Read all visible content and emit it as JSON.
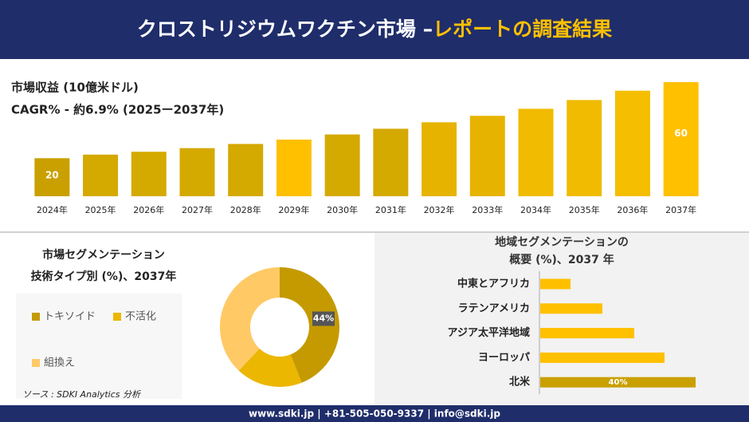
{
  "header": {
    "title": "クロストリジウムワクチン市場 –",
    "highlight": "レポートの調査結果"
  },
  "chart_data": [
    {
      "type": "bar",
      "title": "市場収益 (10億米ドル)",
      "subtitle": "CAGR% - 約6.9% (2025ー2037年)",
      "categories": [
        "2024年",
        "2025年",
        "2026年",
        "2027年",
        "2028年",
        "2029年",
        "2030年",
        "2031年",
        "2032年",
        "2033年",
        "2034年",
        "2035年",
        "2036年",
        "2037年"
      ],
      "values": [
        20,
        21.9,
        23.4,
        25.3,
        27.5,
        29.8,
        32.5,
        35.5,
        38.9,
        42.3,
        46,
        50.6,
        55.5,
        60
      ],
      "value_labels": [
        "20",
        null,
        null,
        null,
        null,
        null,
        null,
        null,
        null,
        null,
        null,
        null,
        null,
        "60"
      ],
      "colors": [
        "#c9a000",
        "#d4a900",
        "#d4a900",
        "#d4a900",
        "#d4a900",
        "#ffc000",
        "#d4a900",
        "#d4a900",
        "#e6b400",
        "#e6b400",
        "#f0bb00",
        "#f0bb00",
        "#f5be00",
        "#ffc000"
      ]
    },
    {
      "type": "donut",
      "title": "市場セグメンテーション",
      "subtitle": "技術タイプ別 (%)、2037年",
      "categories": [
        "トキソイド",
        "不活化",
        "組換え"
      ],
      "values": [
        44,
        18,
        38
      ],
      "value_labels": [
        "44%",
        null,
        null
      ],
      "colors": [
        "#c49a00",
        "#ebb700",
        "#ffc966"
      ]
    },
    {
      "type": "hbar",
      "title": "地域セグメンテーションの",
      "subtitle": "概要 (%)、2037 年",
      "categories": [
        "中東とアフリカ",
        "ラテンアメリカ",
        "アジア太平洋地域",
        "ヨーロッパ",
        "北米"
      ],
      "values": [
        7.8,
        16,
        24.2,
        32,
        40
      ],
      "value_labels": [
        null,
        null,
        null,
        null,
        "40%"
      ],
      "color": "#ffc000",
      "highlight_color": "#c9a000"
    }
  ],
  "source": "ソース : SDKI Analytics 分析",
  "footer": "www.sdki.jp | +81-505-050-9337 | info@sdki.jp"
}
